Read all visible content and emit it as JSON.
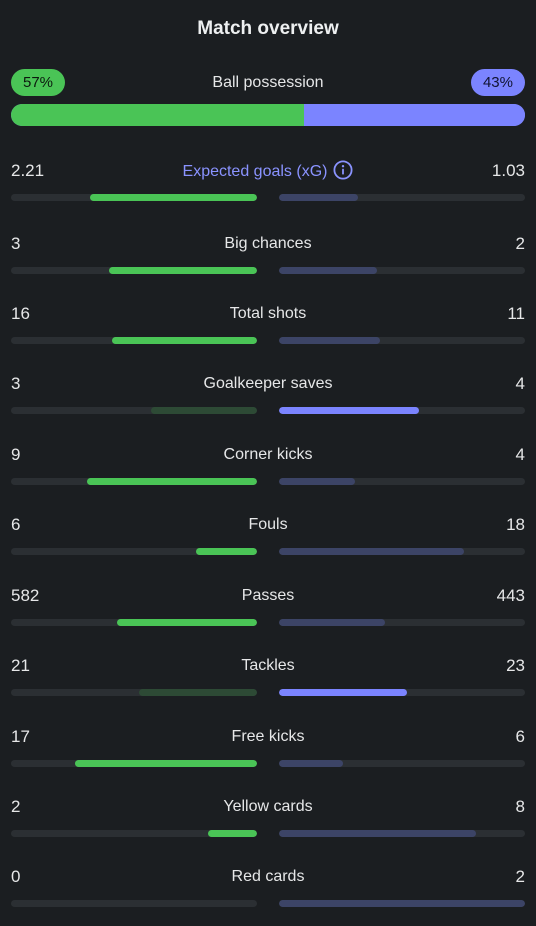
{
  "title": "Match overview",
  "possession": {
    "label": "Ball possession",
    "home": "57%",
    "away": "43%",
    "home_fraction": 0.57
  },
  "colors": {
    "home": "#4ac456",
    "away": "#7b84ff",
    "home_dim": "#2d4a35",
    "away_dim": "#3c4466",
    "accent_label": "#8a93ff",
    "track": "#2b2f33",
    "background": "#1b1e21"
  },
  "stats": [
    {
      "label": "Expected goals (xG)",
      "home": "2.21",
      "away": "1.03",
      "home_ratio": 0.68,
      "away_ratio": 0.32,
      "highlight": "home",
      "accent": true,
      "icon": "info-icon"
    },
    {
      "label": "Big chances",
      "home": "3",
      "away": "2",
      "home_ratio": 0.6,
      "away_ratio": 0.4,
      "highlight": "home"
    },
    {
      "label": "Total shots",
      "home": "16",
      "away": "11",
      "home_ratio": 0.59,
      "away_ratio": 0.41,
      "highlight": "home"
    },
    {
      "label": "Goalkeeper saves",
      "home": "3",
      "away": "4",
      "home_ratio": 0.43,
      "away_ratio": 0.57,
      "highlight": "away"
    },
    {
      "label": "Corner kicks",
      "home": "9",
      "away": "4",
      "home_ratio": 0.69,
      "away_ratio": 0.31,
      "highlight": "home"
    },
    {
      "label": "Fouls",
      "home": "6",
      "away": "18",
      "home_ratio": 0.25,
      "away_ratio": 0.75,
      "highlight": "home"
    },
    {
      "label": "Passes",
      "home": "582",
      "away": "443",
      "home_ratio": 0.57,
      "away_ratio": 0.43,
      "highlight": "home"
    },
    {
      "label": "Tackles",
      "home": "21",
      "away": "23",
      "home_ratio": 0.48,
      "away_ratio": 0.52,
      "highlight": "away"
    },
    {
      "label": "Free kicks",
      "home": "17",
      "away": "6",
      "home_ratio": 0.74,
      "away_ratio": 0.26,
      "highlight": "home"
    },
    {
      "label": "Yellow cards",
      "home": "2",
      "away": "8",
      "home_ratio": 0.2,
      "away_ratio": 0.8,
      "highlight": "home"
    },
    {
      "label": "Red cards",
      "home": "0",
      "away": "2",
      "home_ratio": 0.0,
      "away_ratio": 1.0,
      "highlight": "home"
    }
  ]
}
